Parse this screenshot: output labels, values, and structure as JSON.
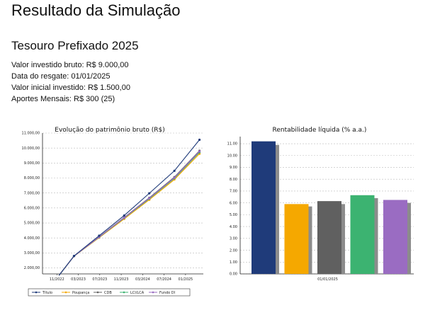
{
  "page": {
    "title": "Resultado da Simulação",
    "product": "Tesouro Prefixado 2025",
    "info": [
      "Valor investido bruto: R$ 9.000,00",
      "Data do resgate: 01/01/2025",
      "Valor inicial investido: R$ 1.500,00",
      "Aportes Mensais: R$ 300 (25)"
    ]
  },
  "colors": {
    "titulo": "#1f3b7a",
    "poupanca": "#f5a800",
    "cdb": "#606060",
    "lci_lca": "#3cb371",
    "fundo_di": "#9a6cc2",
    "bar_shadow": "#8c8c8c",
    "grid": "#bbbbbb"
  },
  "chart_data": [
    {
      "type": "line",
      "title": "Evolução do patrimônio bruto (R$)",
      "x_ticks": [
        "11/2022",
        "03/2023",
        "07/2023",
        "11/2023",
        "03/2024",
        "07/2024",
        "01/2025"
      ],
      "y_ticks": [
        "2.000,00",
        "3.000,00",
        "4.000,00",
        "5.000,00",
        "6.000,00",
        "7.000,00",
        "8.000,00",
        "9.000,00",
        "10.000,00",
        "11.000,00"
      ],
      "ylim": [
        1600,
        11000
      ],
      "x_index_range": [
        0,
        7.5
      ],
      "x": [
        0.4,
        1,
        2,
        3,
        4,
        5,
        6
      ],
      "series": [
        {
          "name": "Título",
          "color_key": "titulo",
          "values": [
            1500,
            2800,
            4150,
            5500,
            6980,
            8480,
            10550
          ]
        },
        {
          "name": "Poupança",
          "color_key": "poupanca",
          "values": [
            1500,
            2780,
            4020,
            5270,
            6550,
            7900,
            9620
          ]
        },
        {
          "name": "CDB",
          "color_key": "cdb",
          "values": [
            1500,
            2790,
            4070,
            5370,
            6680,
            8060,
            9820
          ]
        },
        {
          "name": "LCI/LCA",
          "color_key": "lci_lca",
          "values": [
            1500,
            2785,
            4050,
            5330,
            6620,
            7980,
            9720
          ]
        },
        {
          "name": "Fundo DI",
          "color_key": "fundo_di",
          "values": [
            1500,
            2788,
            4060,
            5350,
            6650,
            8020,
            9780
          ]
        }
      ],
      "legend": [
        "Título",
        "Poupança",
        "CDB",
        "LCI/LCA",
        "Fundo DI"
      ],
      "legend_position": "bottom",
      "grid": true
    },
    {
      "type": "bar",
      "title": "Rentabilidade líquida (% a.a.)",
      "categories": [
        "01/01/2025"
      ],
      "y_ticks": [
        "0.00",
        "1.00",
        "2.00",
        "3.00",
        "4.00",
        "5.00",
        "6.00",
        "7.00",
        "8.00",
        "9.00",
        "10.00",
        "11.00"
      ],
      "ylim": [
        0,
        11.6
      ],
      "series": [
        {
          "name": "Título",
          "color_key": "titulo",
          "value": 11.2,
          "shadow": 10.9
        },
        {
          "name": "Poupança",
          "color_key": "poupanca",
          "value": 5.9,
          "shadow": 5.7
        },
        {
          "name": "CDB",
          "color_key": "cdb",
          "value": 6.15,
          "shadow": 5.9
        },
        {
          "name": "LCI/LCA",
          "color_key": "lci_lca",
          "value": 6.65,
          "shadow": 6.4
        },
        {
          "name": "Fundo DI",
          "color_key": "fundo_di",
          "value": 6.25,
          "shadow": 6.0
        }
      ],
      "grid": true
    }
  ]
}
